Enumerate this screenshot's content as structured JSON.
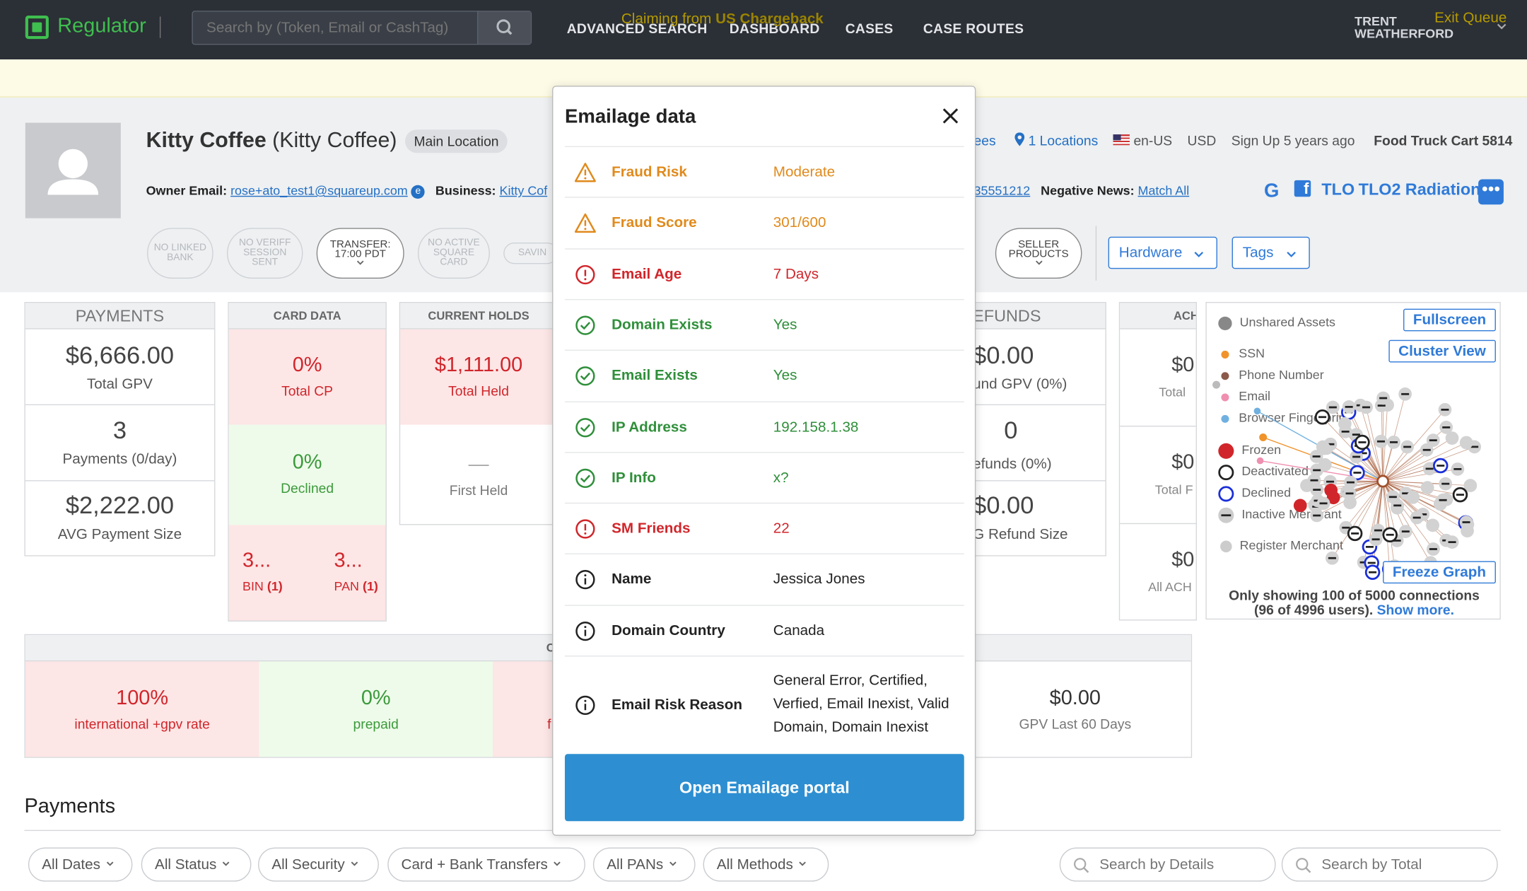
{
  "nav": {
    "app_name": "Regulator",
    "search_placeholder": "Search by (Token, Email or CashTag)",
    "links": [
      "ADVANCED SEARCH",
      "DASHBOARD",
      "CASES",
      "CASE ROUTES"
    ],
    "user_first": "TRENT",
    "user_last": "WEATHERFORD"
  },
  "claim": {
    "prefix": "Claiming from ",
    "queue": "US Chargeback",
    "exit": "Exit Queue"
  },
  "profile": {
    "name": "Kitty Coffee",
    "alias": "(Kitty Coffee)",
    "location_badge": "Main Location",
    "owner_label": "Owner Email:",
    "owner_email_user": "rose+ato_test1",
    "owner_email_domain": "@squareup.com",
    "business_label": "Business:",
    "business_value": "Kitty Cof",
    "pills": [
      "NO LINKED BANK",
      "NO VERIFF SESSION SENT",
      "TRANSFER: 17:00 PDT",
      "NO ACTIVE SQUARE CARD",
      "SAVIN",
      "SELLER PRODUCTS"
    ],
    "meta": {
      "employees_tail": "ees",
      "locations": "1 Locations",
      "locale": "en-US",
      "currency": "USD",
      "signup": "Sign Up 5 years ago",
      "mcc": "Food Truck Cart 5814"
    },
    "phone_tail": "35551212",
    "neg_news_label": "Negative News:",
    "neg_news_value": "Match All",
    "social": [
      "G",
      "f",
      "TLO",
      "TLO2",
      "Radiation"
    ],
    "more": "•••",
    "hardware": "Hardware",
    "tags": "Tags"
  },
  "cards": {
    "payments": {
      "header": "PAYMENTS",
      "stats": [
        {
          "value": "$6,666.00",
          "label": "Total GPV"
        },
        {
          "value": "3",
          "label": "Payments (0/day)"
        },
        {
          "value": "$2,222.00",
          "label": "AVG Payment Size"
        }
      ]
    },
    "card_data": {
      "header": "CARD DATA",
      "cp_value": "0%",
      "cp_label": "Total CP",
      "declined_value": "0%",
      "declined_label": "Declined",
      "bin_value": "3...",
      "bin_label": "BIN",
      "bin_count": "(1)",
      "pan_value": "3...",
      "pan_label": "PAN",
      "pan_count": "(1)"
    },
    "holds": {
      "header": "CURRENT HOLDS",
      "held_value": "$1,111.00",
      "held_label": "Total Held",
      "first_value": "—",
      "first_label": "First Held"
    },
    "refunds": {
      "header": "REFUNDS",
      "header_tail": "EFUNDS",
      "stats": [
        {
          "value": "$0.00",
          "label": "und GPV (0%)"
        },
        {
          "value": "0",
          "label": "efunds (0%)"
        },
        {
          "value": "$0.00",
          "label": "G Refund Size"
        }
      ]
    },
    "ach": {
      "header": "ACH A",
      "stats": [
        {
          "value": "$0",
          "label": "Total"
        },
        {
          "value": "$0",
          "label": "Total F"
        },
        {
          "value": "$0",
          "label": "All ACH"
        }
      ]
    },
    "bottom": {
      "header_tail": "C",
      "intl_value": "100%",
      "intl_label": "international +gpv rate",
      "prepaid_value": "0%",
      "prepaid_label": "prepaid",
      "third_tail": "f",
      "gpv60_value": "$0.00",
      "gpv60_label": "GPV Last 60 Days"
    }
  },
  "graph": {
    "unshared": "Unshared Assets",
    "fullscreen": "Fullscreen",
    "cluster": "Cluster View",
    "freeze": "Freeze Graph",
    "legend": [
      {
        "label": "SSN",
        "color": "#f0932b"
      },
      {
        "label": "Phone Number",
        "color": "#8b5a4a"
      },
      {
        "label": "Email",
        "color": "#f08fb0"
      },
      {
        "label": "Browser Fingerprint",
        "color": "#6fb0e0"
      },
      {
        "label": "Frozen",
        "color": "#d0262b"
      },
      {
        "label": "Deactivated",
        "color": "#222"
      },
      {
        "label": "Declined",
        "color": "#1a2fd8"
      },
      {
        "label": "Inactive Merchant",
        "color": "#555"
      },
      {
        "label": "Register Merchant",
        "color": "#ccc"
      }
    ],
    "footer_line1": "Only showing 100 of 5000 connections",
    "footer_line2": "(96 of 4996 users).",
    "show_more": "Show more."
  },
  "modal": {
    "title": "Emailage data",
    "rows": [
      {
        "key": "Fraud Risk",
        "value": "Moderate",
        "status": "warning",
        "color": "#e08a1c"
      },
      {
        "key": "Fraud Score",
        "value": "301/600",
        "status": "warning",
        "color": "#e08a1c"
      },
      {
        "key": "Email Age",
        "value": "7 Days",
        "status": "alert",
        "color": "#d0262b"
      },
      {
        "key": "Domain Exists",
        "value": "Yes",
        "status": "ok",
        "color": "#2f8f3a"
      },
      {
        "key": "Email Exists",
        "value": "Yes",
        "status": "ok",
        "color": "#2f8f3a"
      },
      {
        "key": "IP Address",
        "value": "192.158.1.38",
        "status": "ok",
        "color": "#2f8f3a"
      },
      {
        "key": "IP Info",
        "value": "x?",
        "status": "ok",
        "color": "#2f8f3a"
      },
      {
        "key": "SM Friends",
        "value": "22",
        "status": "alert",
        "color": "#d0262b"
      },
      {
        "key": "Name",
        "value": "Jessica Jones",
        "status": "info",
        "color": "#222"
      },
      {
        "key": "Domain Country",
        "value": "Canada",
        "status": "info",
        "color": "#222"
      },
      {
        "key": "Email Risk Reason",
        "value_lines": [
          "General Error, Certified,",
          "Verfied, Email Inexist, Valid",
          "Domain, Domain Inexist"
        ],
        "status": "info",
        "color": "#222"
      }
    ],
    "button": "Open Emailage portal"
  },
  "payments_section": {
    "title": "Payments",
    "filters": [
      "All Dates",
      "All Status",
      "All Security",
      "Card + Bank Transfers",
      "All PANs",
      "All Methods"
    ],
    "search_details": "Search by Details",
    "search_total": "Search by Total"
  }
}
